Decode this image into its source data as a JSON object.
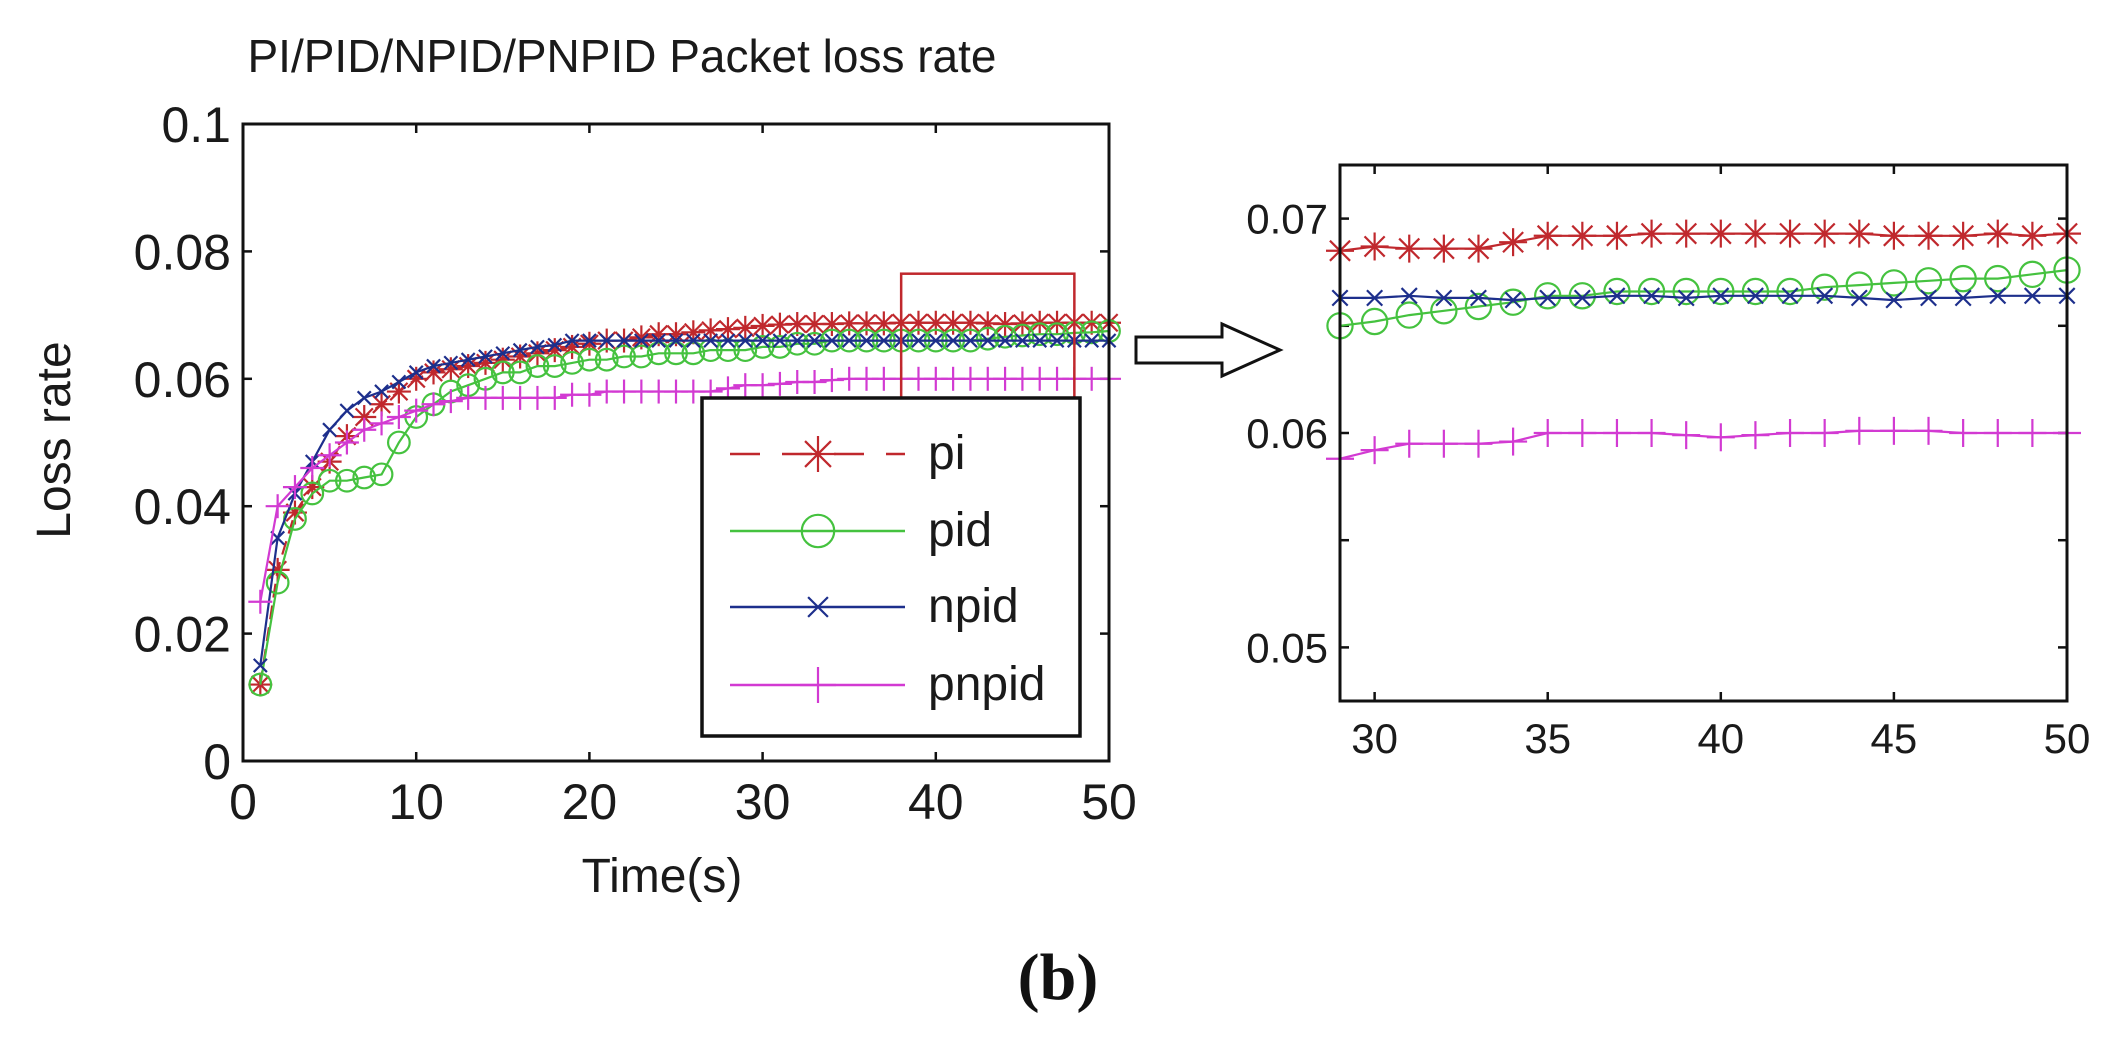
{
  "panel_label": "(b)",
  "colors": {
    "pi": "#c0282d",
    "pid": "#45c23f",
    "npid": "#1d2f8c",
    "pnpid": "#d23ad2",
    "axis": "#111111",
    "zoom_box": "#c0282d"
  },
  "chart_data": [
    {
      "type": "line",
      "title": "PI/PID/NPID/PNPID  Packet loss rate",
      "xlabel": "Time(s)",
      "ylabel": "Loss rate",
      "xlim": [
        0,
        50
      ],
      "ylim": [
        0,
        0.1
      ],
      "xticks": [
        0,
        10,
        20,
        30,
        40,
        50
      ],
      "xtick_labels": [
        "0",
        "10",
        "20",
        "30",
        "40",
        "50"
      ],
      "yticks": [
        0,
        0.02,
        0.04,
        0.06,
        0.08,
        0.1
      ],
      "ytick_labels": [
        "0",
        "0.02",
        "0.04",
        "0.06",
        "0.08",
        "0.1"
      ],
      "grid": false,
      "legend_position": "bottom-right",
      "x": [
        1,
        2,
        3,
        4,
        5,
        6,
        7,
        8,
        9,
        10,
        11,
        12,
        13,
        14,
        15,
        16,
        17,
        18,
        19,
        20,
        21,
        22,
        23,
        24,
        25,
        26,
        27,
        28,
        29,
        30,
        31,
        32,
        33,
        34,
        35,
        36,
        37,
        38,
        39,
        40,
        41,
        42,
        43,
        44,
        45,
        46,
        47,
        48,
        49,
        50
      ],
      "series": [
        {
          "name": "pi",
          "marker": "asterisk",
          "dash": "dashed",
          "values": [
            0.012,
            0.03,
            0.039,
            0.043,
            0.047,
            0.051,
            0.054,
            0.056,
            0.058,
            0.06,
            0.061,
            0.0615,
            0.062,
            0.0625,
            0.063,
            0.0635,
            0.064,
            0.0645,
            0.065,
            0.0655,
            0.066,
            0.066,
            0.0665,
            0.067,
            0.067,
            0.0673,
            0.0676,
            0.0678,
            0.068,
            0.0683,
            0.0685,
            0.0686,
            0.0686,
            0.0686,
            0.0687,
            0.0687,
            0.0687,
            0.0688,
            0.0688,
            0.0688,
            0.0688,
            0.0688,
            0.0687,
            0.0686,
            0.0687,
            0.0688,
            0.0688,
            0.0688,
            0.0688,
            0.0688
          ]
        },
        {
          "name": "pid",
          "marker": "circle",
          "dash": "solid",
          "values": [
            0.012,
            0.028,
            0.038,
            0.042,
            0.044,
            0.044,
            0.0445,
            0.045,
            0.05,
            0.054,
            0.056,
            0.058,
            0.059,
            0.06,
            0.061,
            0.061,
            0.062,
            0.062,
            0.0625,
            0.063,
            0.063,
            0.0635,
            0.0635,
            0.064,
            0.064,
            0.064,
            0.0645,
            0.0645,
            0.0645,
            0.065,
            0.065,
            0.0655,
            0.0655,
            0.066,
            0.066,
            0.066,
            0.066,
            0.066,
            0.066,
            0.066,
            0.066,
            0.066,
            0.0663,
            0.0666,
            0.0668,
            0.067,
            0.067,
            0.0672,
            0.0673,
            0.0675
          ]
        },
        {
          "name": "npid",
          "marker": "x",
          "dash": "solid",
          "values": [
            0.015,
            0.035,
            0.042,
            0.047,
            0.052,
            0.055,
            0.057,
            0.058,
            0.0595,
            0.061,
            0.062,
            0.0625,
            0.063,
            0.0635,
            0.064,
            0.0645,
            0.065,
            0.0653,
            0.066,
            0.066,
            0.066,
            0.066,
            0.066,
            0.066,
            0.066,
            0.066,
            0.066,
            0.066,
            0.066,
            0.066,
            0.066,
            0.066,
            0.066,
            0.066,
            0.066,
            0.066,
            0.066,
            0.066,
            0.066,
            0.066,
            0.066,
            0.066,
            0.066,
            0.066,
            0.066,
            0.066,
            0.066,
            0.066,
            0.066,
            0.066
          ]
        },
        {
          "name": "pnpid",
          "marker": "plus",
          "dash": "solid",
          "values": [
            0.025,
            0.04,
            0.043,
            0.046,
            0.048,
            0.05,
            0.052,
            0.053,
            0.054,
            0.055,
            0.056,
            0.0565,
            0.057,
            0.057,
            0.057,
            0.057,
            0.057,
            0.057,
            0.0575,
            0.0575,
            0.058,
            0.058,
            0.058,
            0.058,
            0.058,
            0.058,
            0.058,
            0.0585,
            0.059,
            0.059,
            0.0592,
            0.0595,
            0.0595,
            0.0598,
            0.06,
            0.06,
            0.06,
            0.06,
            0.06,
            0.06,
            0.06,
            0.06,
            0.06,
            0.06,
            0.06,
            0.06,
            0.06,
            0.06,
            0.06,
            0.06
          ]
        }
      ]
    },
    {
      "type": "line",
      "title": "",
      "xlabel": "",
      "ylabel": "",
      "xlim": [
        29,
        50
      ],
      "ylim": [
        0.0475,
        0.0725
      ],
      "xticks": [
        30,
        35,
        40,
        45,
        50
      ],
      "xtick_labels": [
        "30",
        "35",
        "40",
        "45",
        "50"
      ],
      "yticks": [
        0.05,
        0.055,
        0.06,
        0.065,
        0.07
      ],
      "ytick_labels": [
        "0.05",
        "",
        "0.06",
        "",
        "0.07"
      ],
      "grid": false,
      "x": [
        29,
        30,
        31,
        32,
        33,
        34,
        35,
        36,
        37,
        38,
        39,
        40,
        41,
        42,
        43,
        44,
        45,
        46,
        47,
        48,
        49,
        50
      ],
      "series": [
        {
          "name": "pi",
          "marker": "asterisk",
          "dash": "solid",
          "values": [
            0.0685,
            0.0687,
            0.0686,
            0.0686,
            0.0686,
            0.0689,
            0.0692,
            0.0692,
            0.0692,
            0.0693,
            0.0693,
            0.0693,
            0.0693,
            0.0693,
            0.0693,
            0.0693,
            0.0692,
            0.0692,
            0.0692,
            0.0693,
            0.0692,
            0.0693
          ]
        },
        {
          "name": "pid",
          "marker": "circle",
          "dash": "solid",
          "values": [
            0.065,
            0.0652,
            0.0655,
            0.0657,
            0.0659,
            0.0661,
            0.0664,
            0.0664,
            0.0666,
            0.0666,
            0.0666,
            0.0666,
            0.0666,
            0.0666,
            0.0668,
            0.0669,
            0.067,
            0.0671,
            0.0672,
            0.0672,
            0.0674,
            0.0676
          ]
        },
        {
          "name": "npid",
          "marker": "x",
          "dash": "solid",
          "values": [
            0.0663,
            0.0663,
            0.0664,
            0.0663,
            0.0663,
            0.0662,
            0.0663,
            0.0663,
            0.0664,
            0.0664,
            0.0663,
            0.0664,
            0.0664,
            0.0664,
            0.0664,
            0.0663,
            0.0662,
            0.0663,
            0.0663,
            0.0664,
            0.0664,
            0.0664
          ]
        },
        {
          "name": "pnpid",
          "marker": "plus",
          "dash": "solid",
          "values": [
            0.0588,
            0.0592,
            0.0595,
            0.0595,
            0.0595,
            0.0596,
            0.06,
            0.06,
            0.06,
            0.06,
            0.0599,
            0.0598,
            0.0599,
            0.06,
            0.06,
            0.0601,
            0.0601,
            0.0601,
            0.06,
            0.06,
            0.06,
            0.06
          ]
        }
      ]
    }
  ]
}
